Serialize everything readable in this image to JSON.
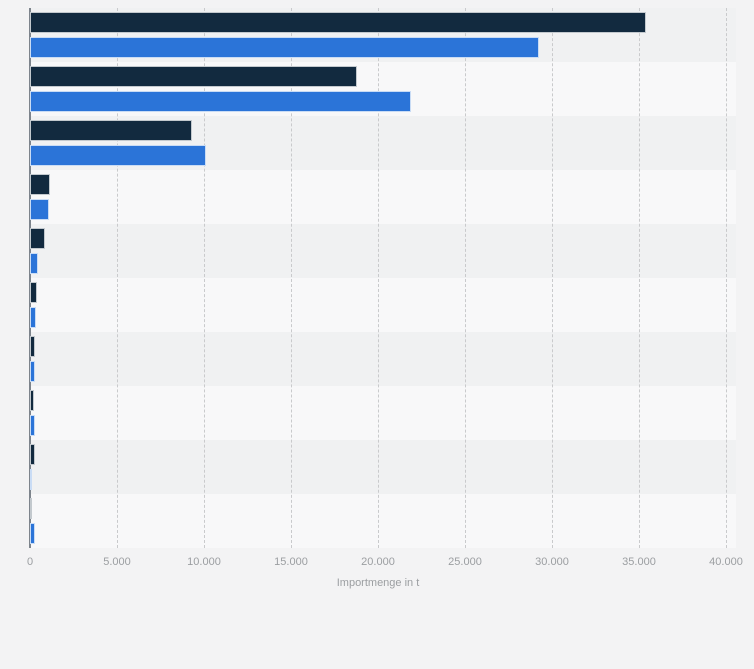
{
  "page": {
    "background_color": "#f3f3f4"
  },
  "chart_data": {
    "type": "bar",
    "orientation": "horizontal",
    "title": "",
    "xlabel": "Importmenge in t",
    "ylabel": "",
    "xlim": [
      0,
      40000
    ],
    "x_tick_step": 5000,
    "x_ticks": [
      "0",
      "5.000",
      "10.000",
      "15.000",
      "20.000",
      "25.000",
      "30.000",
      "35.000",
      "40.000"
    ],
    "grid": true,
    "legend_visible": false,
    "category_labels_visible": false,
    "n_groups": 10,
    "series": [
      {
        "name": "dark-navy-series",
        "color": "#122a3f",
        "values": [
          35400,
          18800,
          9300,
          1150,
          860,
          430,
          280,
          250,
          270,
          130
        ]
      },
      {
        "name": "blue-series",
        "color": "#2b74d8",
        "values": [
          29250,
          21900,
          10100,
          1100,
          460,
          360,
          300,
          280,
          30,
          270
        ]
      }
    ],
    "row_stripe_colors": [
      "#f0f1f2",
      "#f8f8f9"
    ],
    "bar_border_color": "#ffffff",
    "axis_line_color": "#7d848c",
    "grid_color": "#c9cacc",
    "tick_label_color": "#9b9ea1"
  }
}
